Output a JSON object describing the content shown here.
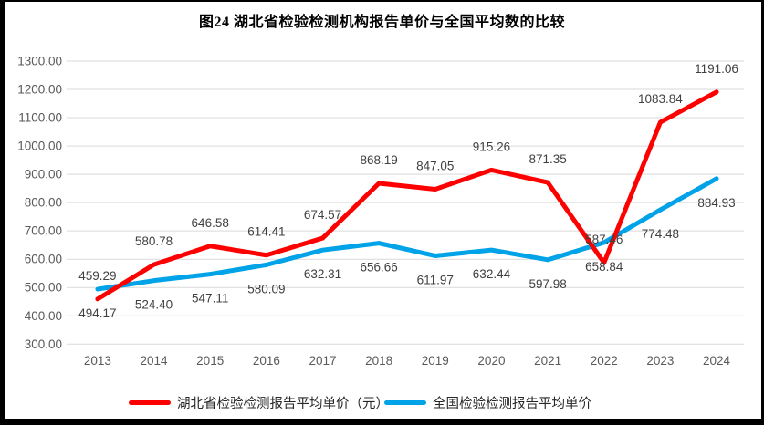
{
  "chart_data": {
    "type": "line",
    "title": "图24 湖北省检验检测机构报告单价与全国平均数的比较",
    "categories": [
      "2013",
      "2014",
      "2015",
      "2016",
      "2017",
      "2018",
      "2019",
      "2020",
      "2021",
      "2022",
      "2023",
      "2024"
    ],
    "series": [
      {
        "name": "湖北省检验检测报告平均单价（元）",
        "color": "#FE0000",
        "label_position": "above",
        "values": [
          459.29,
          580.78,
          646.58,
          614.41,
          674.57,
          868.19,
          847.05,
          915.26,
          871.35,
          587.46,
          1083.84,
          1191.06
        ]
      },
      {
        "name": "全国检验检测报告平均单价",
        "color": "#00A3E8",
        "label_position": "below",
        "values": [
          494.17,
          524.4,
          547.11,
          580.09,
          632.31,
          656.66,
          611.97,
          632.44,
          597.98,
          658.84,
          774.48,
          884.93
        ]
      }
    ],
    "ylim": [
      300,
      1300
    ],
    "ytick_step": 100,
    "y_tick_labels": [
      "1300.00",
      "1200.00",
      "1100.00",
      "1000.00",
      "900.00",
      "800.00",
      "700.00",
      "600.00",
      "500.00",
      "400.00",
      "300.00"
    ],
    "grid": "horizontal-only",
    "legend_position": "bottom",
    "colors": {
      "gridline": "#D9D9D9",
      "axis_text": "#595959",
      "data_label_text": "#404040",
      "title_text": "#000000",
      "frame_border": "#000000",
      "background": "#FFFFFF"
    }
  }
}
